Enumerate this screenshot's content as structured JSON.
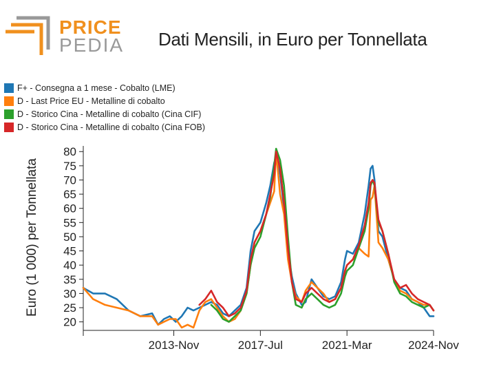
{
  "logo": {
    "word1": "PRICE",
    "word2": "PEDIA",
    "accent": "#f0901e",
    "gray": "#999999"
  },
  "chart_data": {
    "type": "line",
    "title": "Dati Mensili, in Euro per Tonnellata",
    "ylabel": "Euro (1 000) per Tonnellata",
    "xlabel": "",
    "ylim": [
      17,
      82
    ],
    "yticks": [
      20,
      25,
      30,
      35,
      40,
      45,
      50,
      55,
      60,
      65,
      70,
      75,
      80
    ],
    "xlim": [
      "2010-01",
      "2024-11"
    ],
    "xticks": [
      {
        "date": "2013-11",
        "label": "2013-Nov"
      },
      {
        "date": "2017-07",
        "label": "2017-Jul"
      },
      {
        "date": "2021-03",
        "label": "2021-Mar"
      },
      {
        "date": "2024-11",
        "label": "2024-Nov"
      }
    ],
    "legend_position": "top-left",
    "series": [
      {
        "name": "F+ - Consegna a 1 mese - Cobalto (LME)",
        "color": "#1f77b4",
        "points": [
          [
            "2010-01",
            32
          ],
          [
            "2010-06",
            30
          ],
          [
            "2010-12",
            30
          ],
          [
            "2011-06",
            28
          ],
          [
            "2011-12",
            24
          ],
          [
            "2012-06",
            22
          ],
          [
            "2012-12",
            23
          ],
          [
            "2013-03",
            19
          ],
          [
            "2013-06",
            21
          ],
          [
            "2013-09",
            22
          ],
          [
            "2013-12",
            20
          ],
          [
            "2014-03",
            22
          ],
          [
            "2014-06",
            25
          ],
          [
            "2014-09",
            24
          ],
          [
            "2014-12",
            25
          ],
          [
            "2015-03",
            26
          ],
          [
            "2015-06",
            27
          ],
          [
            "2015-09",
            26
          ],
          [
            "2015-12",
            23
          ],
          [
            "2016-03",
            22
          ],
          [
            "2016-06",
            24
          ],
          [
            "2016-09",
            26
          ],
          [
            "2016-12",
            32
          ],
          [
            "2017-02",
            45
          ],
          [
            "2017-04",
            52
          ],
          [
            "2017-07",
            55
          ],
          [
            "2017-10",
            62
          ],
          [
            "2017-12",
            68
          ],
          [
            "2018-02",
            76
          ],
          [
            "2018-03",
            78
          ],
          [
            "2018-05",
            72
          ],
          [
            "2018-07",
            60
          ],
          [
            "2018-09",
            45
          ],
          [
            "2018-11",
            36
          ],
          [
            "2019-01",
            30
          ],
          [
            "2019-04",
            26
          ],
          [
            "2019-06",
            27
          ],
          [
            "2019-09",
            35
          ],
          [
            "2019-12",
            32
          ],
          [
            "2020-03",
            29
          ],
          [
            "2020-06",
            28
          ],
          [
            "2020-09",
            29
          ],
          [
            "2020-12",
            34
          ],
          [
            "2021-02",
            42
          ],
          [
            "2021-03",
            45
          ],
          [
            "2021-06",
            44
          ],
          [
            "2021-09",
            48
          ],
          [
            "2021-12",
            58
          ],
          [
            "2022-02",
            68
          ],
          [
            "2022-03",
            74
          ],
          [
            "2022-04",
            75
          ],
          [
            "2022-05",
            70
          ],
          [
            "2022-07",
            52
          ],
          [
            "2022-09",
            50
          ],
          [
            "2022-12",
            42
          ],
          [
            "2023-03",
            35
          ],
          [
            "2023-06",
            32
          ],
          [
            "2023-09",
            31
          ],
          [
            "2023-12",
            28
          ],
          [
            "2024-03",
            27
          ],
          [
            "2024-06",
            25
          ],
          [
            "2024-09",
            22
          ],
          [
            "2024-11",
            22
          ]
        ]
      },
      {
        "name": "D - Last Price EU - Metalline di cobalto",
        "color": "#ff7f0e",
        "points": [
          [
            "2010-01",
            32
          ],
          [
            "2010-06",
            28
          ],
          [
            "2010-12",
            26
          ],
          [
            "2011-06",
            25
          ],
          [
            "2011-12",
            24
          ],
          [
            "2012-06",
            22
          ],
          [
            "2012-12",
            22
          ],
          [
            "2013-03",
            19
          ],
          [
            "2013-06",
            20
          ],
          [
            "2013-09",
            21
          ],
          [
            "2013-12",
            21
          ],
          [
            "2014-03",
            18
          ],
          [
            "2014-06",
            19
          ],
          [
            "2014-09",
            18
          ],
          [
            "2014-12",
            24
          ],
          [
            "2015-03",
            27
          ],
          [
            "2015-06",
            28
          ],
          [
            "2015-09",
            25
          ],
          [
            "2015-12",
            22
          ],
          [
            "2016-03",
            20
          ],
          [
            "2016-06",
            21
          ],
          [
            "2016-09",
            24
          ],
          [
            "2016-12",
            30
          ],
          [
            "2017-02",
            40
          ],
          [
            "2017-04",
            48
          ],
          [
            "2017-07",
            52
          ],
          [
            "2017-10",
            58
          ],
          [
            "2017-12",
            62
          ],
          [
            "2018-02",
            66
          ],
          [
            "2018-03",
            80
          ],
          [
            "2018-05",
            65
          ],
          [
            "2018-07",
            58
          ],
          [
            "2018-09",
            42
          ],
          [
            "2018-11",
            34
          ],
          [
            "2019-01",
            29
          ],
          [
            "2019-04",
            27
          ],
          [
            "2019-06",
            31
          ],
          [
            "2019-09",
            34
          ],
          [
            "2019-12",
            32
          ],
          [
            "2020-03",
            30
          ],
          [
            "2020-06",
            27
          ],
          [
            "2020-09",
            28
          ],
          [
            "2020-12",
            32
          ],
          [
            "2021-02",
            38
          ],
          [
            "2021-03",
            40
          ],
          [
            "2021-06",
            42
          ],
          [
            "2021-09",
            46
          ],
          [
            "2021-12",
            44
          ],
          [
            "2022-02",
            43
          ],
          [
            "2022-03",
            63
          ],
          [
            "2022-04",
            64
          ],
          [
            "2022-05",
            68
          ],
          [
            "2022-07",
            48
          ],
          [
            "2022-09",
            46
          ],
          [
            "2022-12",
            42
          ],
          [
            "2023-03",
            35
          ],
          [
            "2023-06",
            31
          ],
          [
            "2023-09",
            30
          ],
          [
            "2023-12",
            28
          ],
          [
            "2024-03",
            27
          ],
          [
            "2024-06",
            26
          ],
          [
            "2024-09",
            26
          ],
          [
            "2024-11",
            24
          ]
        ]
      },
      {
        "name": "D - Storico Cina - Metalline di cobalto (Cina CIF)",
        "color": "#2ca02c",
        "points": [
          [
            "2015-06",
            26
          ],
          [
            "2015-09",
            24
          ],
          [
            "2015-12",
            21
          ],
          [
            "2016-03",
            20
          ],
          [
            "2016-06",
            22
          ],
          [
            "2016-09",
            24
          ],
          [
            "2016-12",
            30
          ],
          [
            "2017-02",
            40
          ],
          [
            "2017-04",
            46
          ],
          [
            "2017-07",
            50
          ],
          [
            "2017-10",
            58
          ],
          [
            "2017-12",
            64
          ],
          [
            "2018-02",
            75
          ],
          [
            "2018-03",
            81
          ],
          [
            "2018-05",
            77
          ],
          [
            "2018-07",
            68
          ],
          [
            "2018-09",
            50
          ],
          [
            "2018-11",
            34
          ],
          [
            "2019-01",
            26
          ],
          [
            "2019-04",
            25
          ],
          [
            "2019-06",
            28
          ],
          [
            "2019-09",
            30
          ],
          [
            "2019-12",
            28
          ],
          [
            "2020-03",
            26
          ],
          [
            "2020-06",
            25
          ],
          [
            "2020-09",
            26
          ],
          [
            "2020-12",
            30
          ],
          [
            "2021-02",
            36
          ],
          [
            "2021-03",
            38
          ],
          [
            "2021-06",
            40
          ],
          [
            "2021-09",
            46
          ],
          [
            "2021-12",
            52
          ],
          [
            "2022-02",
            60
          ],
          [
            "2022-03",
            68
          ],
          [
            "2022-04",
            70
          ],
          [
            "2022-05",
            68
          ],
          [
            "2022-07",
            55
          ],
          [
            "2022-09",
            52
          ],
          [
            "2022-12",
            44
          ],
          [
            "2023-03",
            34
          ],
          [
            "2023-06",
            30
          ],
          [
            "2023-09",
            29
          ],
          [
            "2023-12",
            27
          ],
          [
            "2024-03",
            26
          ],
          [
            "2024-06",
            25
          ],
          [
            "2024-09",
            26
          ],
          [
            "2024-11",
            24
          ]
        ]
      },
      {
        "name": "D - Storico Cina - Metalline di cobalto (Cina FOB)",
        "color": "#d62728",
        "points": [
          [
            "2014-12",
            26
          ],
          [
            "2015-03",
            28
          ],
          [
            "2015-06",
            31
          ],
          [
            "2015-09",
            27
          ],
          [
            "2015-12",
            25
          ],
          [
            "2016-03",
            22
          ],
          [
            "2016-06",
            23
          ],
          [
            "2016-09",
            25
          ],
          [
            "2016-12",
            31
          ],
          [
            "2017-02",
            42
          ],
          [
            "2017-04",
            48
          ],
          [
            "2017-07",
            52
          ],
          [
            "2017-10",
            58
          ],
          [
            "2017-12",
            65
          ],
          [
            "2018-02",
            72
          ],
          [
            "2018-03",
            80
          ],
          [
            "2018-05",
            74
          ],
          [
            "2018-07",
            62
          ],
          [
            "2018-09",
            46
          ],
          [
            "2018-11",
            34
          ],
          [
            "2019-01",
            28
          ],
          [
            "2019-04",
            27
          ],
          [
            "2019-06",
            30
          ],
          [
            "2019-09",
            32
          ],
          [
            "2019-12",
            30
          ],
          [
            "2020-03",
            28
          ],
          [
            "2020-06",
            27
          ],
          [
            "2020-09",
            28
          ],
          [
            "2020-12",
            32
          ],
          [
            "2021-02",
            38
          ],
          [
            "2021-03",
            40
          ],
          [
            "2021-06",
            42
          ],
          [
            "2021-09",
            47
          ],
          [
            "2021-12",
            54
          ],
          [
            "2022-02",
            62
          ],
          [
            "2022-03",
            69
          ],
          [
            "2022-04",
            70
          ],
          [
            "2022-05",
            69
          ],
          [
            "2022-07",
            56
          ],
          [
            "2022-09",
            52
          ],
          [
            "2022-12",
            44
          ],
          [
            "2023-03",
            35
          ],
          [
            "2023-06",
            32
          ],
          [
            "2023-09",
            33
          ],
          [
            "2023-12",
            30
          ],
          [
            "2024-03",
            28
          ],
          [
            "2024-06",
            27
          ],
          [
            "2024-09",
            26
          ],
          [
            "2024-11",
            24
          ]
        ]
      }
    ]
  }
}
